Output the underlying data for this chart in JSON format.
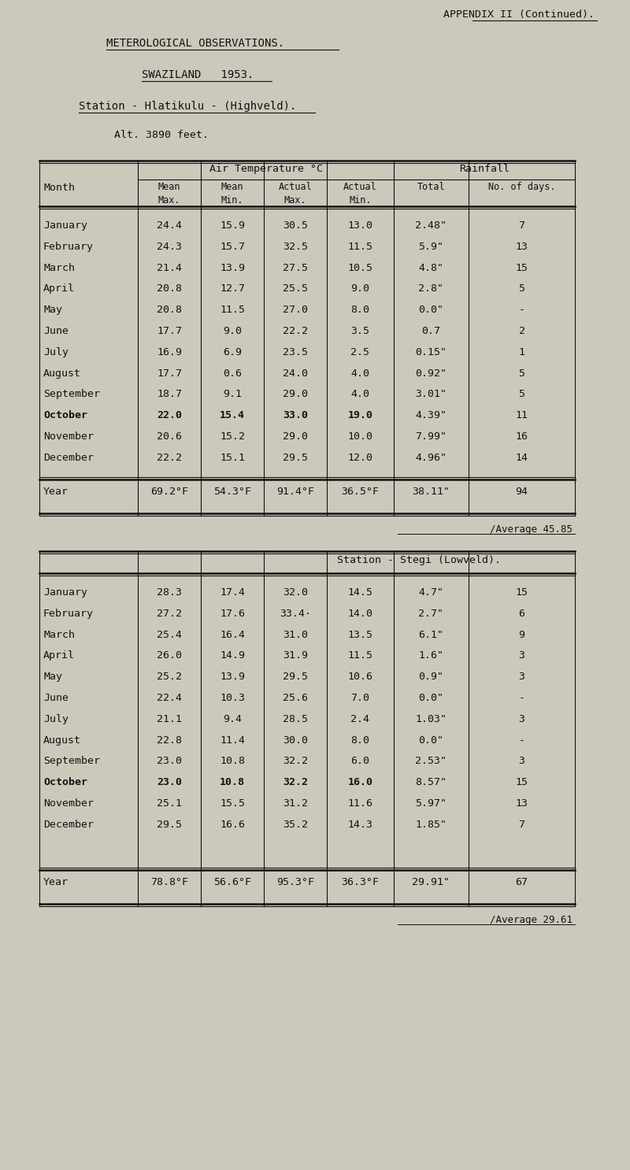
{
  "bg_color": "#ccc9bc",
  "text_color": "#111111",
  "title_appendix": "APPENDIX II (Continued).",
  "title_met": "METEROLOGICAL OBSERVATIONS.",
  "title_country": "SWAZILAND   1953.",
  "station1_title": "Station - Hlatikulu - (Highveld).",
  "station1_alt": "Alt. 3890 feet.",
  "station2_label": "Station - Stegi (Lowveld).",
  "station1_average": "/Average 45.85",
  "station2_average": "/Average 29.61",
  "months": [
    "January",
    "February",
    "March",
    "April",
    "May",
    "June",
    "July",
    "August",
    "September",
    "October",
    "November",
    "December",
    "Year"
  ],
  "station1_data": [
    [
      "24.4",
      "15.9",
      "30.5",
      "13.0",
      "2.48\"",
      "7"
    ],
    [
      "24.3",
      "15.7",
      "32.5",
      "11.5",
      "5.9\"",
      "13"
    ],
    [
      "21.4",
      "13.9",
      "27.5",
      "10.5",
      "4.8\"",
      "15"
    ],
    [
      "20.8",
      "12.7",
      "25.5",
      "9.0",
      "2.8\"",
      "5"
    ],
    [
      "20.8",
      "11.5",
      "27.0",
      "8.0",
      "0.0\"",
      "-"
    ],
    [
      "17.7",
      "9.0",
      "22.2",
      "3.5",
      "0.7",
      "2"
    ],
    [
      "16.9",
      "6.9",
      "23.5",
      "2.5",
      "0.15\"",
      "1"
    ],
    [
      "17.7",
      "0.6",
      "24.0",
      "4.0",
      "0.92\"",
      "5"
    ],
    [
      "18.7",
      "9.1",
      "29.0",
      "4.0",
      "3.01\"",
      "5"
    ],
    [
      "22.0",
      "15.4",
      "33.0",
      "19.0",
      "4.39\"",
      "11"
    ],
    [
      "20.6",
      "15.2",
      "29.0",
      "10.0",
      "7.99\"",
      "16"
    ],
    [
      "22.2",
      "15.1",
      "29.5",
      "12.0",
      "4.96\"",
      "14"
    ],
    [
      "69.2°F",
      "54.3°F",
      "91.4°F",
      "36.5°F",
      "38.11\"",
      "94"
    ]
  ],
  "station2_data": [
    [
      "28.3",
      "17.4",
      "32.0",
      "14.5",
      "4.7\"",
      "15"
    ],
    [
      "27.2",
      "17.6",
      "33.4·",
      "14.0",
      "2.7\"",
      "6"
    ],
    [
      "25.4",
      "16.4",
      "31.0",
      "13.5",
      "6.1\"",
      "9"
    ],
    [
      "26.0",
      "14.9",
      "31.9",
      "11.5",
      "1.6\"",
      "3"
    ],
    [
      "25.2",
      "13.9",
      "29.5",
      "10.6",
      "0.9\"",
      "3"
    ],
    [
      "22.4",
      "10.3",
      "25.6",
      "7.0",
      "0.0\"",
      "-"
    ],
    [
      "21.1",
      "9.4",
      "28.5",
      "2.4",
      "1.03\"",
      "3"
    ],
    [
      "22.8",
      "11.4",
      "30.0",
      "8.0",
      "0.0\"",
      "-"
    ],
    [
      "23.0",
      "10.8",
      "32.2",
      "6.0",
      "2.53\"",
      "3"
    ],
    [
      "23.0",
      "10.8",
      "32.2",
      "16.0",
      "8.57\"",
      "15"
    ],
    [
      "25.1",
      "15.5",
      "31.2",
      "11.6",
      "5.97\"",
      "13"
    ],
    [
      "29.5",
      "16.6",
      "35.2",
      "14.3",
      "1.85\"",
      "7"
    ],
    [
      "78.8°F",
      "56.6°F",
      "95.3°F",
      "36.3°F",
      "29.91\"",
      "67"
    ]
  ]
}
